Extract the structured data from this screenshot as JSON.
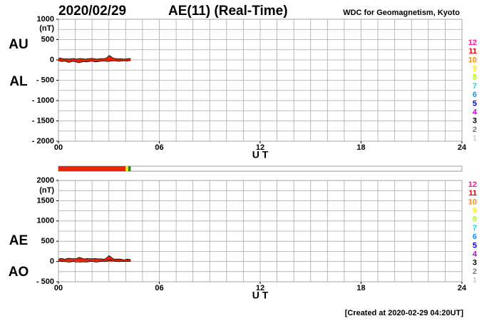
{
  "header": {
    "date": "2020/02/29",
    "title": "AE(11) (Real-Time)",
    "source": "WDC for Geomagnetism, Kyoto"
  },
  "footer": "[Created at 2020-02-29 04:20UT]",
  "level_scale": {
    "levels": [
      12,
      11,
      10,
      9,
      8,
      7,
      6,
      5,
      4,
      3,
      2,
      1
    ],
    "colors": [
      "#ff1493",
      "#ee0000",
      "#ff8c00",
      "#ffee00",
      "#aaff00",
      "#00e0e8",
      "#1e90ff",
      "#0000cc",
      "#cc00cc",
      "#000000",
      "#777777",
      "#cccccc"
    ]
  },
  "activity_bar": {
    "xlim": [
      0,
      24
    ],
    "segments": [
      {
        "start": 0,
        "end": 4.0,
        "color": "#ee2200"
      },
      {
        "start": 4.0,
        "end": 4.15,
        "color": "#ffee00"
      },
      {
        "start": 4.15,
        "end": 4.3,
        "color": "#228800"
      }
    ]
  },
  "chart_data": [
    {
      "type": "area",
      "y_label": "(nT)",
      "x_label": "U T",
      "xlim": [
        0,
        24
      ],
      "xticks": [
        {
          "value": 0,
          "label": "00"
        },
        {
          "value": 6,
          "label": "06"
        },
        {
          "value": 12,
          "label": "12"
        },
        {
          "value": 18,
          "label": "18"
        },
        {
          "value": 24,
          "label": "24"
        }
      ],
      "x_grid_step": 1,
      "grid_step": 250,
      "ylim": [
        -2000,
        1000
      ],
      "yticks": [
        1000,
        500,
        0,
        {
          "value": -500,
          "label": "- 500"
        },
        {
          "value": -1000,
          "label": "- 1000"
        },
        {
          "value": -1500,
          "label": "- 1500"
        },
        {
          "value": -2000,
          "label": "- 2000"
        }
      ],
      "x": [
        0,
        0.1,
        0.2,
        0.3,
        0.4,
        0.5,
        0.6,
        0.7,
        0.8,
        0.9,
        1,
        1.1,
        1.2,
        1.3,
        1.4,
        1.5,
        1.6,
        1.7,
        1.8,
        1.9,
        2,
        2.1,
        2.2,
        2.3,
        2.4,
        2.5,
        2.6,
        2.7,
        2.8,
        2.9,
        3,
        3.1,
        3.2,
        3.3,
        3.4,
        3.5,
        3.6,
        3.7,
        3.8,
        3.9,
        4,
        4.1,
        4.2,
        4.3
      ],
      "series": [
        {
          "name": "AU",
          "color": "#ee2200",
          "fill": true,
          "values": [
            40,
            45,
            35,
            30,
            25,
            30,
            20,
            25,
            30,
            35,
            25,
            20,
            30,
            35,
            30,
            25,
            20,
            25,
            30,
            35,
            40,
            30,
            25,
            20,
            25,
            30,
            35,
            30,
            40,
            60,
            110,
            90,
            60,
            40,
            35,
            30,
            25,
            30,
            25,
            20,
            25,
            30,
            35,
            30
          ]
        },
        {
          "name": "AL",
          "color": "#ee2200",
          "fill": true,
          "values": [
            -20,
            -30,
            -40,
            -35,
            -30,
            -45,
            -60,
            -50,
            -40,
            -35,
            -45,
            -55,
            -70,
            -60,
            -50,
            -40,
            -45,
            -50,
            -40,
            -35,
            -30,
            -40,
            -50,
            -45,
            -40,
            -35,
            -30,
            -25,
            -30,
            -40,
            -35,
            -30,
            -25,
            -20,
            -25,
            -30,
            -35,
            -30,
            -25,
            -20,
            -25,
            -30,
            -20,
            -15
          ]
        }
      ]
    },
    {
      "type": "area",
      "y_label": "(nT)",
      "x_label": "U T",
      "xlim": [
        0,
        24
      ],
      "xticks": [
        {
          "value": 0,
          "label": "00"
        },
        {
          "value": 6,
          "label": "06"
        },
        {
          "value": 12,
          "label": "12"
        },
        {
          "value": 18,
          "label": "18"
        },
        {
          "value": 24,
          "label": "24"
        }
      ],
      "x_grid_step": 1,
      "grid_step": 250,
      "ylim": [
        -500,
        2000
      ],
      "yticks": [
        2000,
        1500,
        1000,
        500,
        0,
        {
          "value": -500,
          "label": "- 500"
        }
      ],
      "x": [
        0,
        0.1,
        0.2,
        0.3,
        0.4,
        0.5,
        0.6,
        0.7,
        0.8,
        0.9,
        1,
        1.1,
        1.2,
        1.3,
        1.4,
        1.5,
        1.6,
        1.7,
        1.8,
        1.9,
        2,
        2.1,
        2.2,
        2.3,
        2.4,
        2.5,
        2.6,
        2.7,
        2.8,
        2.9,
        3,
        3.1,
        3.2,
        3.3,
        3.4,
        3.5,
        3.6,
        3.7,
        3.8,
        3.9,
        4,
        4.1,
        4.2,
        4.3
      ],
      "series": [
        {
          "name": "AE",
          "color": "#ee2200",
          "fill": true,
          "values": [
            60,
            75,
            75,
            65,
            55,
            75,
            80,
            75,
            70,
            70,
            70,
            75,
            100,
            95,
            80,
            65,
            65,
            75,
            70,
            70,
            70,
            70,
            75,
            65,
            65,
            65,
            65,
            55,
            70,
            100,
            145,
            120,
            85,
            60,
            60,
            60,
            60,
            60,
            50,
            40,
            50,
            60,
            55,
            45
          ]
        },
        {
          "name": "AO",
          "color": "#000000",
          "fill": false,
          "values": [
            10,
            7.5,
            -2.5,
            -2.5,
            -2.5,
            -7.5,
            -20,
            -12.5,
            -5,
            0,
            -10,
            -17.5,
            -20,
            -12.5,
            -10,
            -7.5,
            -12.5,
            -12.5,
            -5,
            0,
            5,
            -5,
            -12.5,
            -12.5,
            -7.5,
            -2.5,
            2.5,
            2.5,
            5,
            10,
            37.5,
            30,
            17.5,
            10,
            5,
            0,
            -5,
            0,
            0,
            0,
            0,
            0,
            7.5,
            7.5
          ]
        }
      ]
    }
  ]
}
